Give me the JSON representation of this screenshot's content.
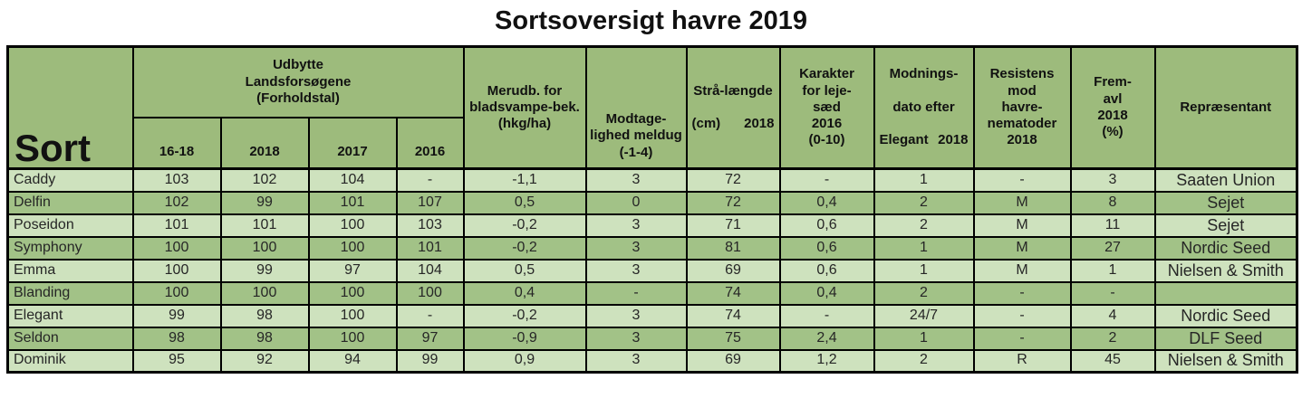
{
  "title": "Sortsoversigt havre 2019",
  "colors": {
    "header_green": "#9DBB7C",
    "row_light": "#CEE2BE",
    "row_dark": "#A2C287",
    "border": "#000000"
  },
  "table": {
    "sort_header": "Sort",
    "group_header_udbytte": "Udbytte\nLandsforsøgene\n(Forholdstal)",
    "year_headers": [
      "16-18",
      "2018",
      "2017",
      "2016"
    ],
    "headers": {
      "merudb": "Merudb. for\nbladsvampe-bek.\n(hkg/ha)",
      "modtagelighed": "Modtage-\nlighed meldug\n(-1-4)",
      "straa_line1": "Strå-længde",
      "straa_cm": "(cm)",
      "straa_year": "2018",
      "karakter": "Karakter\nfor leje-\nsæd\n2016\n(0-10)",
      "modnings_line1": "Modnings-",
      "modnings_line2": "dato efter",
      "modnings_word": "Elegant",
      "modnings_year": "2018",
      "resistens": "Resistens\nmod\nhavre-\nnematoder\n2018",
      "fremavl": "Frem-\navl\n2018\n(%)",
      "repraesentant": "Repræsentant"
    },
    "column_keys": [
      "sort",
      "udbytte-16-18",
      "udbytte-2018",
      "udbytte-2017",
      "udbytte-2016",
      "merudb",
      "meldug",
      "straalaengde",
      "lejesaed",
      "modningsdato",
      "nematoder",
      "fremavl",
      "repraesentant"
    ],
    "rows": [
      [
        "Caddy",
        "103",
        "102",
        "104",
        "-",
        "-1,1",
        "3",
        "72",
        "-",
        "1",
        "-",
        "3",
        "Saaten Union"
      ],
      [
        "Delfin",
        "102",
        "99",
        "101",
        "107",
        "0,5",
        "0",
        "72",
        "0,4",
        "2",
        "M",
        "8",
        "Sejet"
      ],
      [
        "Poseidon",
        "101",
        "101",
        "100",
        "103",
        "-0,2",
        "3",
        "71",
        "0,6",
        "2",
        "M",
        "11",
        "Sejet"
      ],
      [
        "Symphony",
        "100",
        "100",
        "100",
        "101",
        "-0,2",
        "3",
        "81",
        "0,6",
        "1",
        "M",
        "27",
        "Nordic Seed"
      ],
      [
        "Emma",
        "100",
        "99",
        "97",
        "104",
        "0,5",
        "3",
        "69",
        "0,6",
        "1",
        "M",
        "1",
        "Nielsen & Smith"
      ],
      [
        "Blanding",
        "100",
        "100",
        "100",
        "100",
        "0,4",
        "-",
        "74",
        "0,4",
        "2",
        "-",
        "-",
        ""
      ],
      [
        "Elegant",
        "99",
        "98",
        "100",
        "-",
        "-0,2",
        "3",
        "74",
        "-",
        "24/7",
        "-",
        "4",
        "Nordic Seed"
      ],
      [
        "Seldon",
        "98",
        "98",
        "100",
        "97",
        "-0,9",
        "3",
        "75",
        "2,4",
        "1",
        "-",
        "2",
        "DLF Seed"
      ],
      [
        "Dominik",
        "95",
        "92",
        "94",
        "99",
        "0,9",
        "3",
        "69",
        "1,2",
        "2",
        "R",
        "45",
        "Nielsen & Smith"
      ]
    ]
  }
}
